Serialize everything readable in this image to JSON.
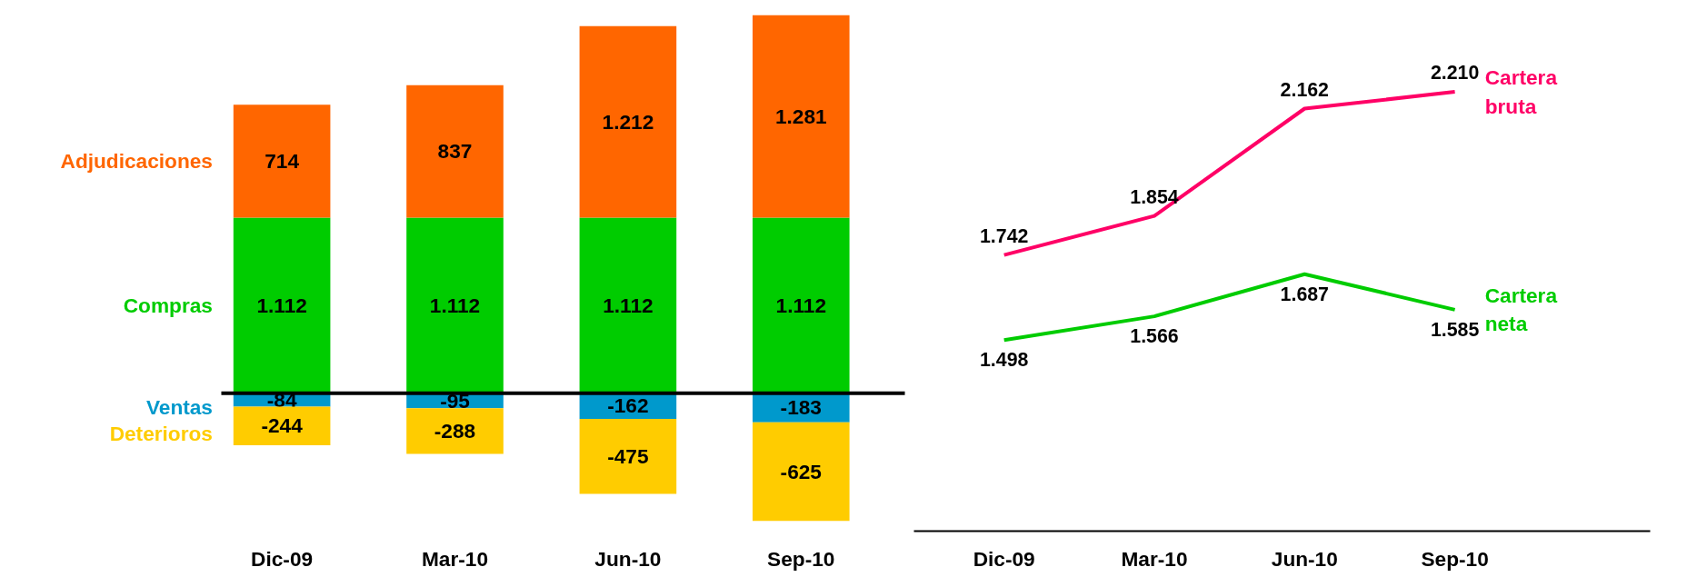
{
  "chart_data": [
    {
      "type": "bar",
      "stacked": true,
      "categories": [
        "Dic-09",
        "Mar-10",
        "Jun-10",
        "Sep-10"
      ],
      "series": [
        {
          "name": "Compras",
          "color": "#00cc00",
          "values": [
            1112,
            1112,
            1112,
            1112
          ],
          "value_labels": [
            "1.112",
            "1.112",
            "1.112",
            "1.112"
          ]
        },
        {
          "name": "Adjudicaciones",
          "color": "#ff6600",
          "values": [
            714,
            837,
            1212,
            1281
          ],
          "value_labels": [
            "714",
            "837",
            "1.212",
            "1.281"
          ]
        },
        {
          "name": "Ventas",
          "color": "#0099cc",
          "values": [
            -84,
            -95,
            -162,
            -183
          ],
          "value_labels": [
            "-84",
            "-95",
            "-162",
            "-183"
          ]
        },
        {
          "name": "Deterioros",
          "color": "#ffcc00",
          "values": [
            -244,
            -288,
            -475,
            -625
          ],
          "value_labels": [
            "-244",
            "-288",
            "-475",
            "-625"
          ]
        }
      ],
      "ref_lines": [
        {
          "axis": "y",
          "value": 0,
          "color": "#000000"
        }
      ]
    },
    {
      "type": "line",
      "categories": [
        "Dic-09",
        "Mar-10",
        "Jun-10",
        "Sep-10"
      ],
      "series": [
        {
          "name": "Cartera bruta",
          "color": "#ff0066",
          "values": [
            1742,
            1854,
            2162,
            2210
          ],
          "value_labels": [
            "1.742",
            "1.854",
            "2.162",
            "2.210"
          ]
        },
        {
          "name": "Cartera neta",
          "color": "#00cc00",
          "values": [
            1498,
            1566,
            1687,
            1585
          ],
          "value_labels": [
            "1.498",
            "1.566",
            "1.687",
            "1.585"
          ]
        }
      ]
    }
  ]
}
